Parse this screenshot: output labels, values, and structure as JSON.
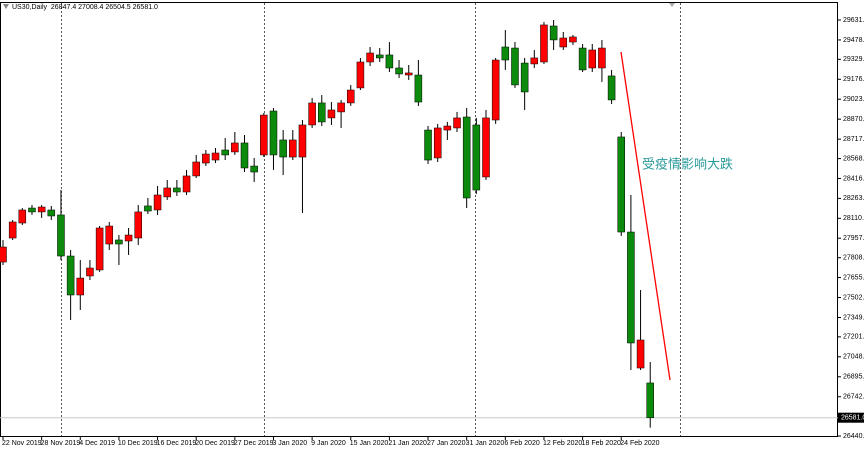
{
  "chart_data": {
    "type": "candlestick",
    "header": "US30,Daily  26847.4 27008.4 26504.5 26581.0",
    "annotation": "受疫情影响大跌",
    "categories": [
      "22 Nov 2019",
      null,
      null,
      null,
      "28 Nov 2019",
      null,
      null,
      null,
      "4 Dec 2019",
      null,
      null,
      null,
      "10 Dec 2019",
      null,
      null,
      null,
      "16 Dec 2019",
      null,
      null,
      null,
      "20 Dec 2019",
      null,
      null,
      null,
      "27 Dec 2019",
      null,
      null,
      null,
      "3 Jan 2020",
      null,
      null,
      null,
      "9 Jan 2020",
      null,
      null,
      null,
      "15 Jan 2020",
      null,
      null,
      null,
      "21 Jan 2020",
      null,
      null,
      null,
      "27 Jan 2020",
      null,
      null,
      null,
      "31 Jan 2020",
      null,
      null,
      null,
      "6 Feb 2020",
      null,
      null,
      null,
      "12 Feb 2020",
      null,
      null,
      null,
      "18 Feb 2020",
      null,
      null,
      null,
      "24 Feb 2020",
      null,
      null,
      null
    ],
    "open": [
      27775,
      27959,
      28074,
      28189,
      28159,
      28174,
      28136,
      27821,
      27522,
      27668,
      27714,
      27913,
      27944,
      27936,
      27959,
      28205,
      28174,
      28274,
      28343,
      28312,
      28435,
      28534,
      28557,
      28634,
      28619,
      28688,
      28511,
      28596,
      28933,
      28711,
      28580,
      28580,
      28826,
      28995,
      28880,
      28926,
      28995,
      29110,
      29309,
      29363,
      29363,
      29263,
      29209,
      29209,
      28787,
      28573,
      28787,
      28803,
      28887,
      28826,
      28427,
      28864,
      29424,
      29416,
      29301,
      29294,
      29309,
      29585,
      29424,
      29462,
      29416,
      29263,
      29263,
      29202,
      28734,
      28005,
      26962,
      26847.4
    ],
    "high": [
      27944,
      28097,
      28189,
      28212,
      28212,
      28205,
      28327,
      27867,
      27790,
      27790,
      28051,
      28082,
      27982,
      28036,
      28212,
      28266,
      28358,
      28404,
      28404,
      28481,
      28596,
      28634,
      28649,
      28726,
      28772,
      28749,
      28573,
      28918,
      28956,
      28787,
      28787,
      28864,
      29033,
      29056,
      29002,
      29018,
      29133,
      29340,
      29424,
      29416,
      29462,
      29324,
      29286,
      29324,
      28818,
      28834,
      28849,
      28926,
      28956,
      28880,
      28941,
      29340,
      29554,
      29462,
      29340,
      29401,
      29616,
      29631,
      29539,
      29516,
      29447,
      29447,
      29478,
      29248,
      28772,
      28289,
      27560,
      27008.4
    ],
    "low": [
      27752,
      27944,
      28059,
      28136,
      28113,
      28097,
      27790,
      27330,
      27407,
      27637,
      27699,
      27867,
      27752,
      27829,
      27905,
      28143,
      28136,
      28251,
      28281,
      28289,
      28419,
      28511,
      28534,
      28557,
      28596,
      28465,
      28389,
      28580,
      28481,
      28442,
      28557,
      28151,
      28803,
      28818,
      28826,
      28803,
      28972,
      29094,
      29278,
      29309,
      29232,
      29186,
      29171,
      28972,
      28527,
      28542,
      28711,
      28772,
      28189,
      28297,
      28404,
      28834,
      29248,
      29110,
      28941,
      29263,
      29294,
      29401,
      29401,
      29439,
      29232,
      29232,
      29156,
      28987,
      27975,
      26947,
      26947,
      26504.5
    ],
    "close": [
      27890,
      28082,
      28174,
      28159,
      28197,
      28128,
      27821,
      27522,
      27652,
      27729,
      28036,
      28051,
      27913,
      27982,
      28159,
      28166,
      28289,
      28343,
      28312,
      28435,
      28542,
      28603,
      28611,
      28596,
      28688,
      28496,
      28465,
      28902,
      28596,
      28580,
      28711,
      28826,
      28995,
      28849,
      28941,
      28995,
      29094,
      29309,
      29378,
      29340,
      29263,
      29217,
      29225,
      29002,
      28557,
      28803,
      28818,
      28880,
      28266,
      28327,
      28880,
      29324,
      29324,
      29133,
      29079,
      29340,
      29593,
      29478,
      29493,
      29501,
      29248,
      29401,
      29416,
      29018,
      28005,
      27154,
      27177,
      26581
    ],
    "up_color": "#ff0000",
    "down_color": "#0b8a0b",
    "current_price": {
      "value": 26581,
      "label": "26581.0"
    },
    "ylim": [
      26433,
      29769
    ],
    "yticks": [
      {
        "value": 29631,
        "label": "29631.0"
      },
      {
        "value": 29478,
        "label": "29478.0"
      },
      {
        "value": 29329.5,
        "label": "29329.5"
      },
      {
        "value": 29176.5,
        "label": "29176.5"
      },
      {
        "value": 29023.5,
        "label": "29023.5"
      },
      {
        "value": 28870.5,
        "label": "28870.5"
      },
      {
        "value": 28717.5,
        "label": "28717.5"
      },
      {
        "value": 28568,
        "label": "28568.0"
      },
      {
        "value": 28416,
        "label": "28416.0"
      },
      {
        "value": 28263,
        "label": "28263.0"
      },
      {
        "value": 28110,
        "label": "28110.0"
      },
      {
        "value": 27957.5,
        "label": "27957.5"
      },
      {
        "value": 27808,
        "label": "27808.0"
      },
      {
        "value": 27655.5,
        "label": "27655.5"
      },
      {
        "value": 27502.5,
        "label": "27502.5"
      },
      {
        "value": 27349.5,
        "label": "27349.5"
      },
      {
        "value": 27201,
        "label": "27201.0"
      },
      {
        "value": 27048,
        "label": "27048.0"
      },
      {
        "value": 26895,
        "label": "26895.0"
      },
      {
        "value": 26742,
        "label": "26742.0"
      },
      {
        "value": 26440.5,
        "label": "26440.5"
      }
    ]
  }
}
